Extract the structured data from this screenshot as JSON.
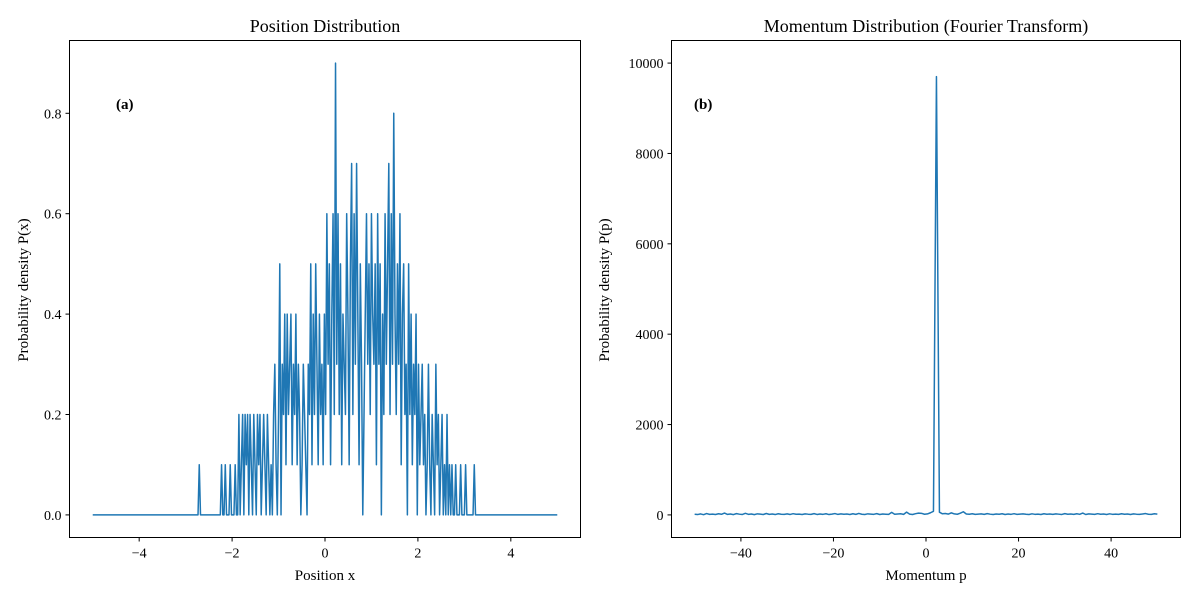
{
  "colors": {
    "series": "#1f77b4"
  },
  "chart_data": [
    {
      "type": "line",
      "title": "Position Distribution",
      "xlabel": "Position x",
      "ylabel": "Probability density P(x)",
      "panel_label": "(a)",
      "xlim": [
        -5.5,
        5.5
      ],
      "ylim": [
        -0.045,
        0.945
      ],
      "xticks": [
        -4,
        -2,
        0,
        2,
        4
      ],
      "xtick_labels": [
        "−4",
        "−2",
        "0",
        "2",
        "4"
      ],
      "yticks": [
        0.0,
        0.2,
        0.4,
        0.6,
        0.8
      ],
      "ytick_labels": [
        "0.0",
        "0.2",
        "0.4",
        "0.6",
        "0.8"
      ],
      "series": [
        {
          "name": "P(x)",
          "x_range": [
            -5.0,
            5.0
          ],
          "values": [
            0,
            0,
            0,
            0,
            0,
            0,
            0,
            0,
            0,
            0,
            0,
            0,
            0,
            0,
            0,
            0,
            0,
            0,
            0,
            0,
            0,
            0,
            0,
            0,
            0,
            0,
            0,
            0,
            0,
            0,
            0,
            0,
            0,
            0,
            0,
            0,
            0,
            0,
            0,
            0,
            0,
            0,
            0,
            0,
            0,
            0,
            0,
            0,
            0,
            0,
            0,
            0,
            0,
            0,
            0,
            0,
            0,
            0,
            0,
            0,
            0,
            0,
            0,
            0,
            0,
            0,
            0,
            0,
            0,
            0,
            0,
            0,
            0,
            0,
            0,
            0,
            0,
            0,
            0,
            0,
            0,
            0,
            0,
            0,
            0,
            0,
            0.1,
            0,
            0,
            0,
            0,
            0,
            0,
            0,
            0,
            0,
            0,
            0,
            0,
            0,
            0,
            0,
            0,
            0,
            0.1,
            0,
            0,
            0.1,
            0,
            0,
            0,
            0.1,
            0,
            0,
            0,
            0.1,
            0,
            0,
            0.2,
            0,
            0.1,
            0.2,
            0,
            0.2,
            0.1,
            0.2,
            0,
            0.2,
            0.1,
            0,
            0.2,
            0.1,
            0,
            0.2,
            0.1,
            0.2,
            0,
            0.1,
            0.2,
            0.1,
            0,
            0.2,
            0.1,
            0,
            0.1,
            0,
            0.2,
            0.3,
            0.1,
            0,
            0.2,
            0.5,
            0,
            0.3,
            0.2,
            0.4,
            0.1,
            0.4,
            0.2,
            0.3,
            0.4,
            0.1,
            0.3,
            0.2,
            0.4,
            0.1,
            0.3,
            0.2,
            0,
            0.1,
            0.3,
            0.2,
            0.1,
            0,
            0.3,
            0.2,
            0.5,
            0.1,
            0.4,
            0.2,
            0.5,
            0.3,
            0.1,
            0.4,
            0.2,
            0.3,
            0.1,
            0.4,
            0.2,
            0.6,
            0.3,
            0.5,
            0.1,
            0.4,
            0.6,
            0.2,
            0.9,
            0.3,
            0.6,
            0.2,
            0.5,
            0.1,
            0.4,
            0.3,
            0.2,
            0.6,
            0.4,
            0.1,
            0.5,
            0.7,
            0.2,
            0.6,
            0.3,
            0.7,
            0.4,
            0.1,
            0.5,
            0.3,
            0,
            0.2,
            0.4,
            0.6,
            0.3,
            0.5,
            0.2,
            0.6,
            0.4,
            0.3,
            0.5,
            0.1,
            0.6,
            0.3,
            0.5,
            0,
            0.4,
            0.2,
            0.6,
            0.3,
            0.5,
            0.7,
            0.2,
            0.6,
            0.3,
            0.8,
            0.4,
            0.2,
            0.5,
            0.3,
            0.6,
            0.1,
            0.4,
            0.5,
            0.2,
            0.3,
            0,
            0.5,
            0.2,
            0.4,
            0.1,
            0.3,
            0.2,
            0.4,
            0,
            0.3,
            0.1,
            0.2,
            0.3,
            0.1,
            0.2,
            0,
            0.1,
            0.3,
            0.1,
            0,
            0.2,
            0.1,
            0,
            0.3,
            0.1,
            0.2,
            0,
            0.1,
            0.2,
            0,
            0.1,
            0,
            0.2,
            0,
            0.1,
            0,
            0.1,
            0,
            0,
            0.1,
            0,
            0,
            0,
            0.1,
            0,
            0,
            0,
            0.1,
            0,
            0,
            0,
            0,
            0,
            0,
            0.1,
            0,
            0,
            0,
            0,
            0,
            0,
            0,
            0,
            0,
            0,
            0,
            0,
            0,
            0,
            0,
            0,
            0,
            0,
            0,
            0,
            0,
            0,
            0,
            0,
            0,
            0,
            0,
            0,
            0,
            0,
            0,
            0,
            0,
            0,
            0,
            0,
            0,
            0,
            0,
            0,
            0,
            0,
            0,
            0,
            0,
            0,
            0,
            0,
            0,
            0,
            0,
            0,
            0,
            0,
            0,
            0,
            0,
            0,
            0,
            0,
            0,
            0,
            0,
            0,
            0,
            0,
            0
          ]
        }
      ]
    },
    {
      "type": "line",
      "title": "Momentum Distribution (Fourier Transform)",
      "xlabel": "Momentum p",
      "ylabel": "Probability density P(p)",
      "panel_label": "(b)",
      "xlim": [
        -55,
        55
      ],
      "ylim": [
        -500,
        10500
      ],
      "xticks": [
        -40,
        -20,
        0,
        20,
        40
      ],
      "xtick_labels": [
        "−40",
        "−20",
        "0",
        "20",
        "40"
      ],
      "yticks": [
        0,
        2000,
        4000,
        6000,
        8000,
        10000
      ],
      "ytick_labels": [
        "0",
        "2000",
        "4000",
        "6000",
        "8000",
        "10000"
      ],
      "series": [
        {
          "name": "P(p)",
          "x_range": [
            -50,
            50
          ],
          "values": [
            15,
            8,
            22,
            5,
            30,
            12,
            18,
            9,
            25,
            14,
            40,
            11,
            20,
            7,
            28,
            16,
            10,
            35,
            13,
            21,
            6,
            24,
            17,
            9,
            31,
            12,
            19,
            8,
            26,
            15,
            11,
            22,
            10,
            27,
            14,
            18,
            9,
            23,
            16,
            12,
            29,
            10,
            20,
            13,
            25,
            8,
            17,
            30,
            11,
            22,
            14,
            19,
            9,
            26,
            12,
            33,
            15,
            10,
            24,
            18,
            13,
            28,
            9,
            21,
            16,
            11,
            55,
            14,
            19,
            25,
            12,
            62,
            18,
            9,
            27,
            40,
            35,
            15,
            22,
            48,
            80,
            9700,
            60,
            25,
            30,
            18,
            45,
            22,
            15,
            38,
            70,
            20,
            14,
            26,
            11,
            18,
            23,
            12,
            29,
            16,
            10,
            21,
            14,
            25,
            9,
            19,
            13,
            27,
            11,
            17,
            22,
            15,
            10,
            24,
            13,
            18,
            9,
            26,
            14,
            20,
            12,
            23,
            16,
            10,
            28,
            15,
            19,
            11,
            25,
            13,
            40,
            9,
            22,
            17,
            12,
            27,
            15,
            20,
            10,
            24,
            13,
            18,
            11,
            26,
            14,
            21,
            9,
            23,
            16,
            12,
            19,
            30,
            14,
            11,
            25,
            17
          ]
        }
      ]
    }
  ]
}
